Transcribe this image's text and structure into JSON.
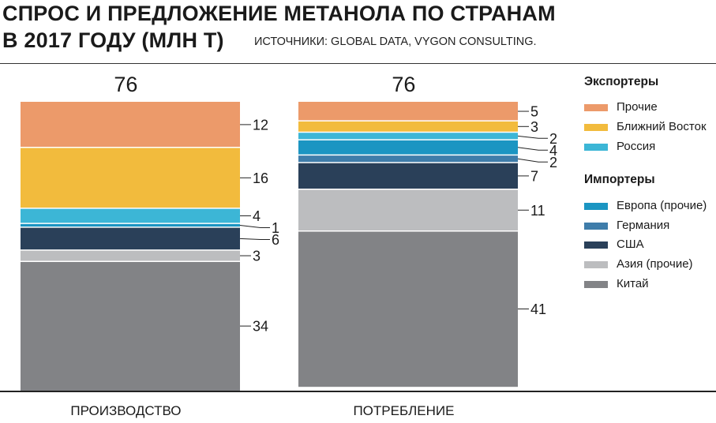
{
  "header": {
    "title_line1": "СПРОС И ПРЕДЛОЖЕНИЕ МЕТАНОЛА ПО СТРАНАМ",
    "title_line2": "В 2017 ГОДУ (МЛН Т)",
    "sources": "ИСТОЧНИКИ: GLOBAL DATA, VYGON CONSULTING."
  },
  "colors": {
    "Прочие": "#ec9a6a",
    "Ближний Восток": "#f2bb3d",
    "Россия": "#3cb6d6",
    "Европа (прочие)": "#1b95c2",
    "Германия": "#3f7daa",
    "США": "#2a4059",
    "Азия (прочие)": "#bcbdbf",
    "Китай": "#828386"
  },
  "legend": {
    "exporters_title": "Экспортеры",
    "exporters": [
      "Прочие",
      "Ближний Восток",
      "Россия"
    ],
    "importers_title": "Импортеры",
    "importers": [
      "Европа (прочие)",
      "Германия",
      "США",
      "Азия (прочие)",
      "Китай"
    ]
  },
  "chart_data": {
    "type": "bar",
    "stacked": true,
    "categories": [
      "ПРОИЗВОДСТВО",
      "ПОТРЕБЛЕНИЕ"
    ],
    "totals": [
      76,
      76
    ],
    "series": [
      {
        "name": "Прочие",
        "values": [
          12,
          5
        ]
      },
      {
        "name": "Ближний Восток",
        "values": [
          16,
          3
        ]
      },
      {
        "name": "Россия",
        "values": [
          4,
          2
        ]
      },
      {
        "name": "Европа (прочие)",
        "values": [
          1,
          4
        ]
      },
      {
        "name": "Германия",
        "values": [
          null,
          2
        ]
      },
      {
        "name": "США",
        "values": [
          6,
          7
        ]
      },
      {
        "name": "Азия (прочие)",
        "values": [
          3,
          11
        ]
      },
      {
        "name": "Китай",
        "values": [
          34,
          41
        ]
      }
    ],
    "title": "СПРОС И ПРЕДЛОЖЕНИЕ МЕТАНОЛА ПО СТРАНАМ В 2017 ГОДУ (МЛН Т)",
    "xlabel": "",
    "ylabel": "",
    "legend_position": "right"
  }
}
